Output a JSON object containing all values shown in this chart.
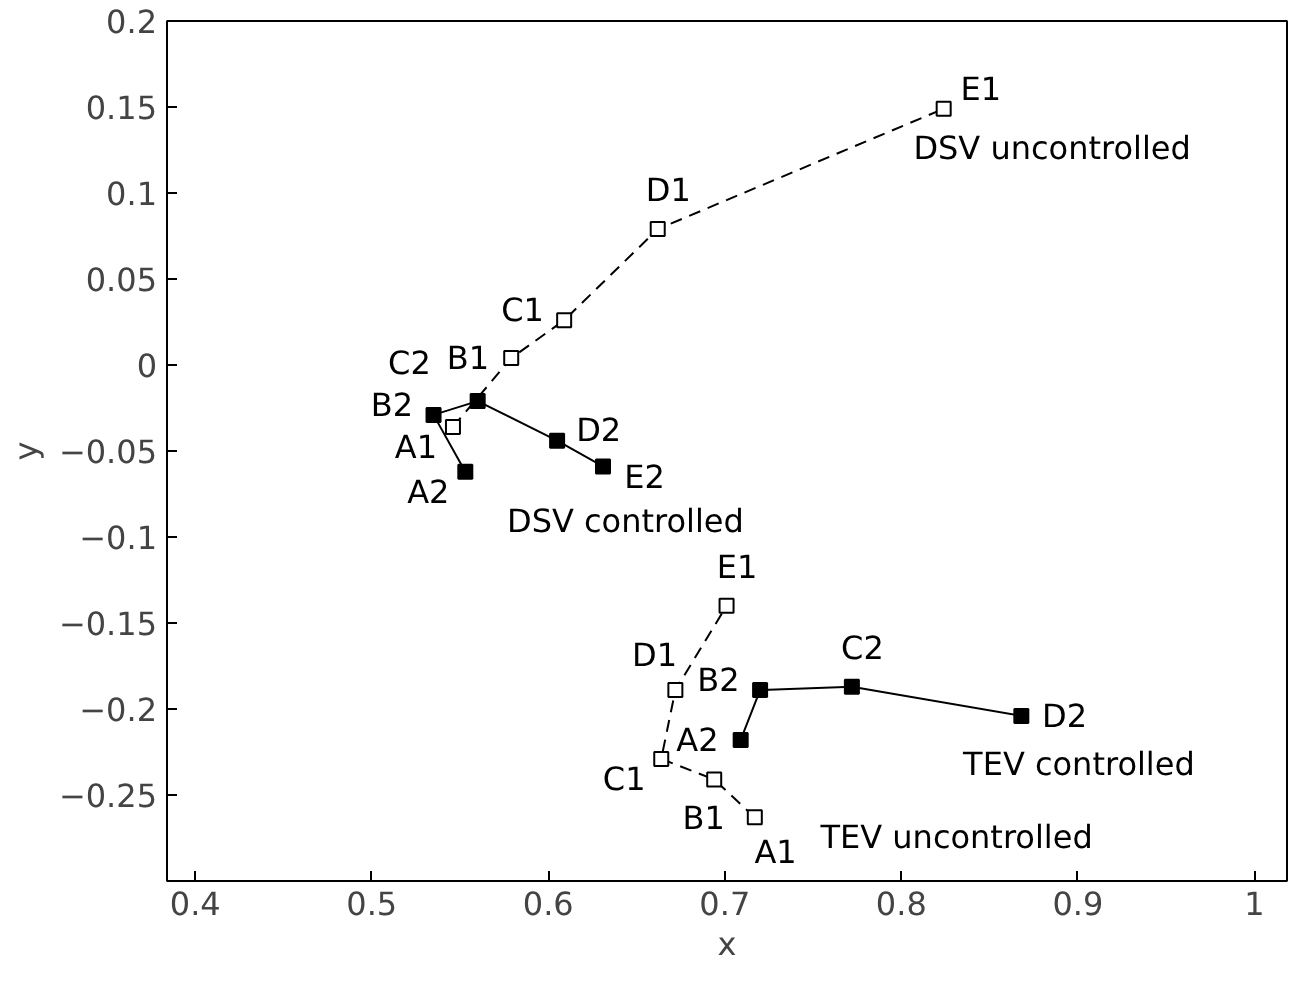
{
  "chart_data": {
    "type": "line",
    "xlabel": "x",
    "ylabel": "y",
    "marker": "square",
    "xlim": [
      0.384,
      1.0185
    ],
    "ylim": [
      -0.3,
      0.2
    ],
    "xticks": [
      0.4,
      0.5,
      0.6,
      0.7,
      0.8,
      0.9,
      1
    ],
    "yticks": [
      {
        "value": -0.25,
        "label": "−0.25"
      },
      {
        "value": -0.2,
        "label": "−0.2"
      },
      {
        "value": -0.15,
        "label": "−0.15"
      },
      {
        "value": -0.1,
        "label": "−0.1"
      },
      {
        "value": -0.05,
        "label": "−0.05"
      },
      0,
      0.05,
      0.1,
      0.15,
      0.2
    ],
    "series": [
      {
        "color": "#000000",
        "line_style": "dashed",
        "x": [
          0.546,
          0.579,
          0.609,
          0.662,
          0.824
        ],
        "values": [
          -0.036,
          0.004,
          0.026,
          0.079,
          0.149
        ]
      },
      {
        "color": "#000000",
        "line_style": "solid",
        "x": [
          0.553,
          0.535,
          0.56,
          0.605,
          0.631
        ],
        "values": [
          -0.062,
          -0.029,
          -0.021,
          -0.044,
          -0.059
        ]
      },
      {
        "color": "#000000",
        "line_style": "dashed",
        "x": [
          0.717,
          0.694,
          0.664,
          0.672,
          0.701
        ],
        "values": [
          -0.263,
          -0.241,
          -0.229,
          -0.189,
          -0.14
        ]
      },
      {
        "color": "#000000",
        "line_style": "solid",
        "x": [
          0.709,
          0.72,
          0.772,
          0.868
        ],
        "values": [
          -0.218,
          -0.189,
          -0.187,
          -0.204
        ]
      }
    ],
    "annotations": [
      {
        "text": "A1",
        "x": 0.546,
        "y": -0.036
      },
      {
        "text": "B1",
        "x": 0.579,
        "y": 0.004
      },
      {
        "text": "C1",
        "x": 0.609,
        "y": 0.026
      },
      {
        "text": "D1",
        "x": 0.662,
        "y": 0.079
      },
      {
        "text": "E1",
        "x": 0.824,
        "y": 0.149
      },
      {
        "text": "DSV uncontrolled",
        "x": 0.824,
        "y": 0.149
      },
      {
        "text": "A2",
        "x": 0.553,
        "y": -0.062
      },
      {
        "text": "B2",
        "x": 0.535,
        "y": -0.029
      },
      {
        "text": "C2",
        "x": 0.56,
        "y": -0.021
      },
      {
        "text": "D2",
        "x": 0.605,
        "y": -0.044
      },
      {
        "text": "E2",
        "x": 0.631,
        "y": -0.059
      },
      {
        "text": "DSV controlled",
        "x": 0.631,
        "y": -0.059
      },
      {
        "text": "A1",
        "x": 0.717,
        "y": -0.263
      },
      {
        "text": "B1",
        "x": 0.694,
        "y": -0.241
      },
      {
        "text": "C1",
        "x": 0.664,
        "y": -0.229
      },
      {
        "text": "D1",
        "x": 0.672,
        "y": -0.189
      },
      {
        "text": "E1",
        "x": 0.701,
        "y": -0.14
      },
      {
        "text": "TEV uncontrolled",
        "x": 0.717,
        "y": -0.263
      },
      {
        "text": "A2",
        "x": 0.709,
        "y": -0.218
      },
      {
        "text": "B2",
        "x": 0.72,
        "y": -0.189
      },
      {
        "text": "C2",
        "x": 0.772,
        "y": -0.187
      },
      {
        "text": "D2",
        "x": 0.868,
        "y": -0.204
      },
      {
        "text": "TEV controlled",
        "x": 0.868,
        "y": -0.204
      }
    ]
  }
}
